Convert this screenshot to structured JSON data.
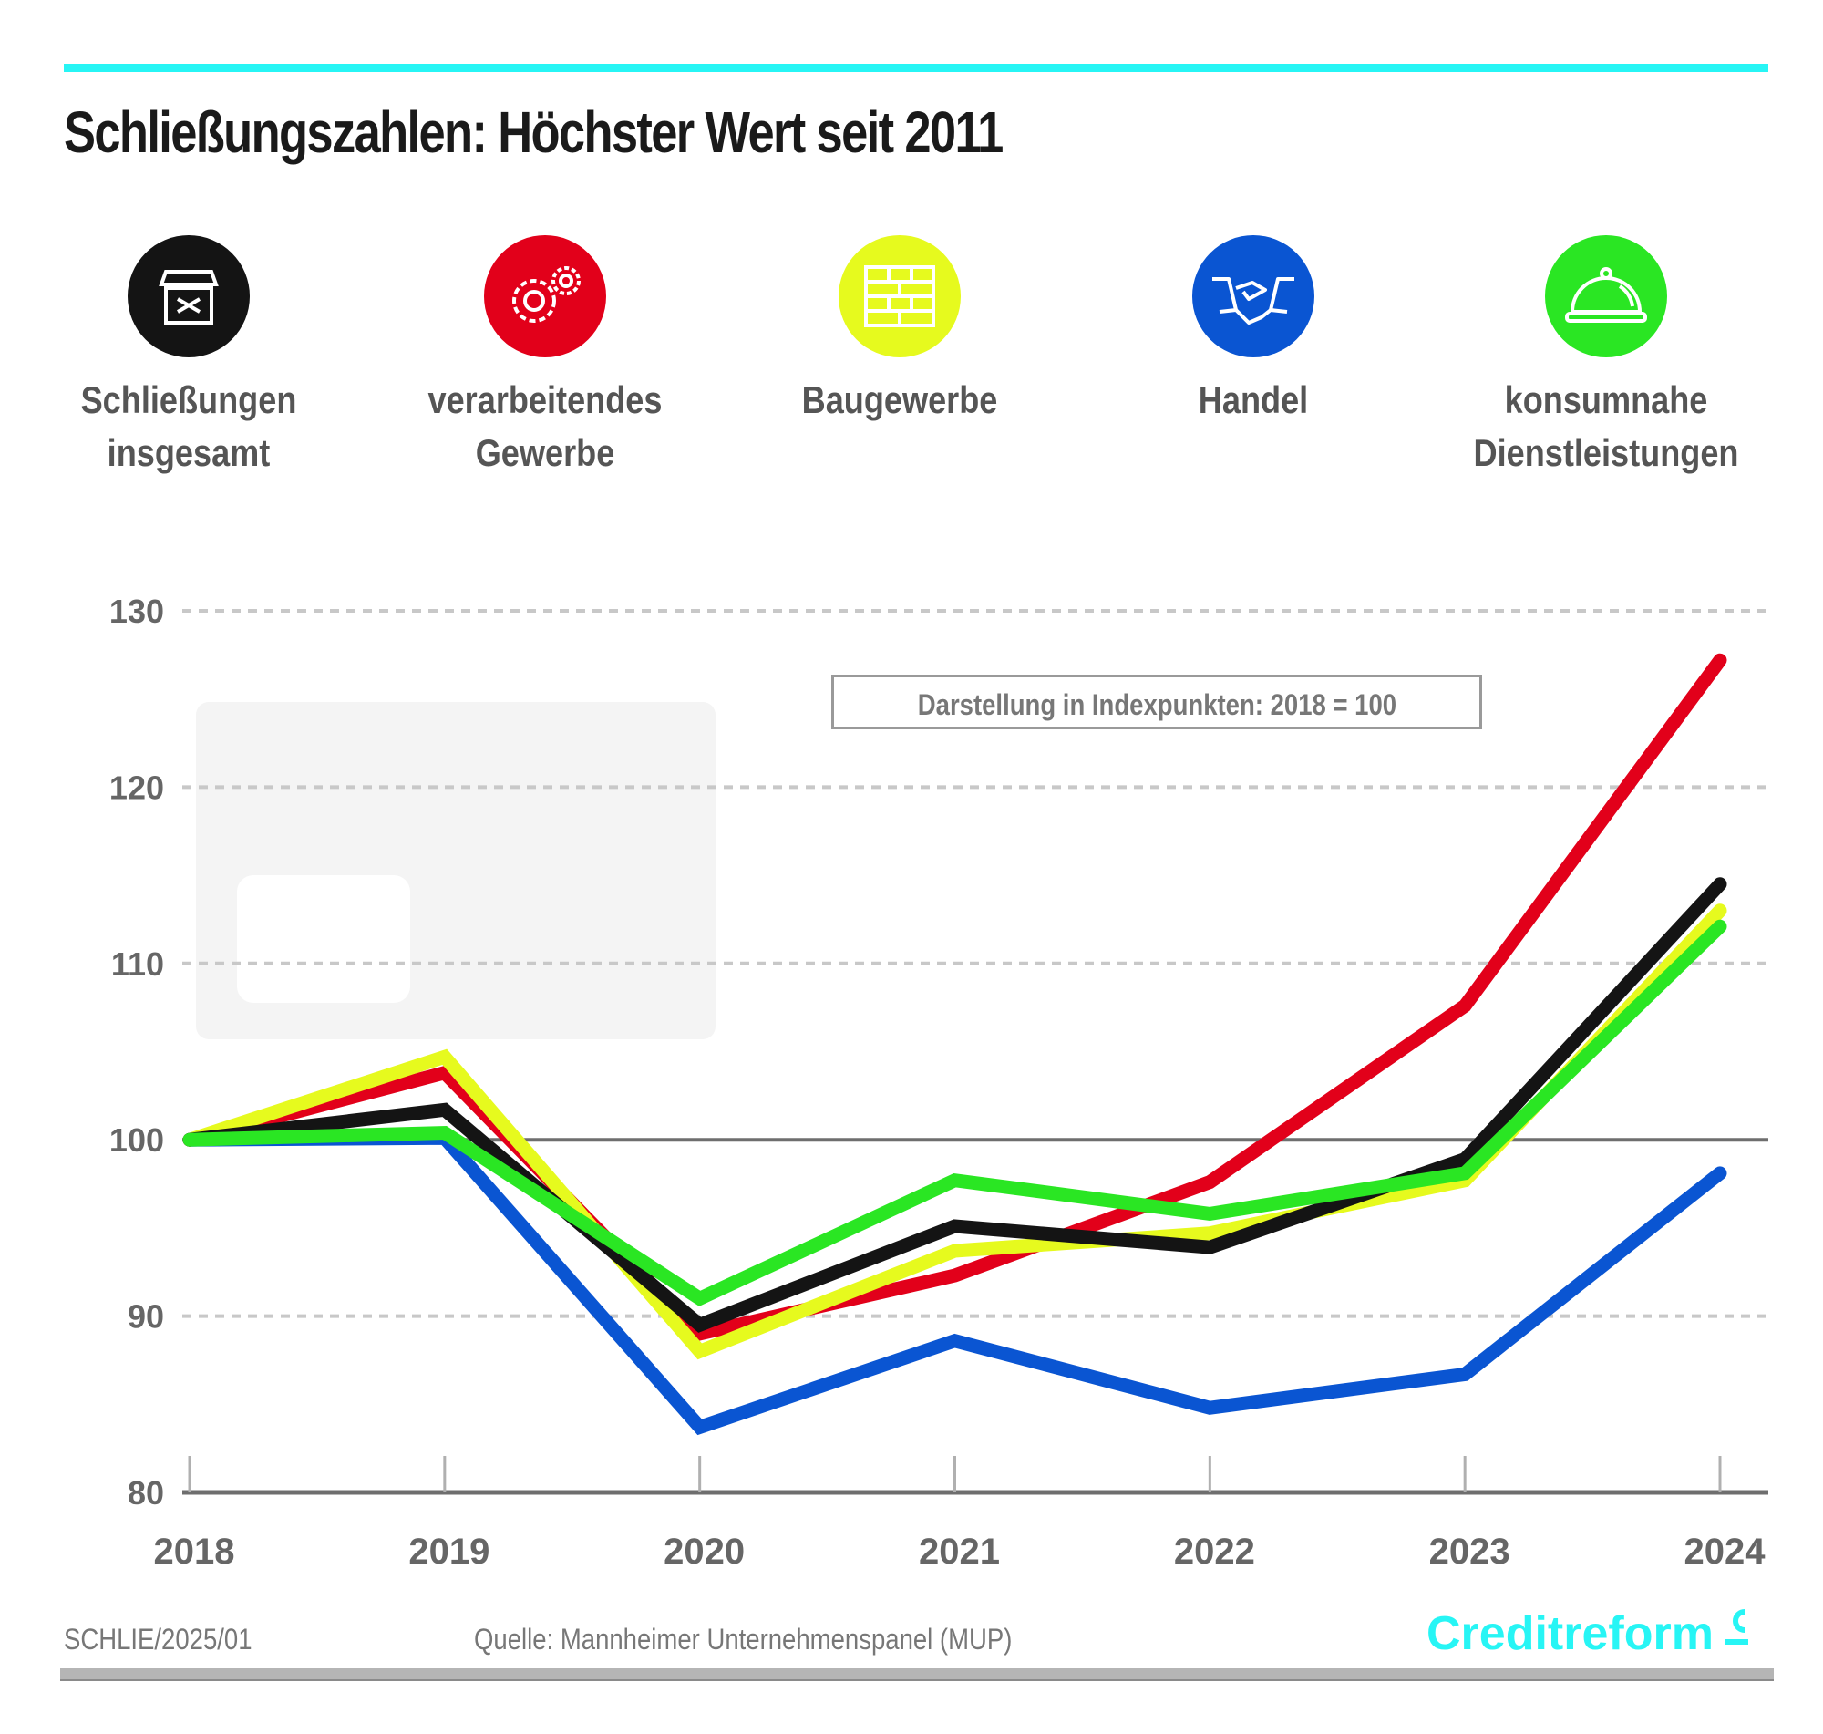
{
  "header": {
    "title": "Schließungszahlen: Höchster Wert seit 2011",
    "accent_color": "#27f5f5"
  },
  "legend": [
    {
      "label_line1": "Schließungen",
      "label_line2": "insgesamt",
      "color": "#141414",
      "icon": "shop-closed-icon"
    },
    {
      "label_line1": "verarbeitendes",
      "label_line2": "Gewerbe",
      "color": "#e2001a",
      "icon": "gears-icon"
    },
    {
      "label_line1": "Baugewerbe",
      "label_line2": "",
      "color": "#e6fa1e",
      "icon": "brick-wall-icon"
    },
    {
      "label_line1": "Handel",
      "label_line2": "",
      "color": "#0a55d2",
      "icon": "handshake-icon"
    },
    {
      "label_line1": "konsumnahe",
      "label_line2": "Dienstleistungen",
      "color": "#2ae623",
      "icon": "food-cloche-icon"
    }
  ],
  "note": "Darstellung in Indexpunkten: 2018 = 100",
  "footer": {
    "code": "SCHLIE/2025/01",
    "source": "Quelle: Mannheimer Unternehmenspanel (MUP)",
    "brand": "Creditreform"
  },
  "chart_data": {
    "type": "line",
    "title": "Schließungszahlen: Höchster Wert seit 2011",
    "subtitle": "Darstellung in Indexpunkten: 2018 = 100",
    "xlabel": "",
    "ylabel": "",
    "x": [
      "2018",
      "2019",
      "2020",
      "2021",
      "2022",
      "2023",
      "2024"
    ],
    "ylim": [
      80,
      130
    ],
    "yticks": [
      80,
      90,
      100,
      110,
      120,
      130
    ],
    "grid": true,
    "legend_position": "top",
    "series": [
      {
        "name": "Schließungen insgesamt",
        "color": "#141414",
        "values": [
          100,
          101.7,
          89.5,
          95.1,
          93.9,
          98.9,
          114.5
        ]
      },
      {
        "name": "verarbeitendes Gewerbe",
        "color": "#e2001a",
        "values": [
          100,
          103.8,
          89.0,
          92.3,
          97.6,
          107.6,
          127.2
        ]
      },
      {
        "name": "Baugewerbe",
        "color": "#e6fa1e",
        "values": [
          100,
          104.7,
          88.0,
          93.7,
          94.7,
          97.7,
          113.0
        ]
      },
      {
        "name": "Handel",
        "color": "#0a55d2",
        "values": [
          100,
          100.1,
          83.7,
          88.6,
          84.8,
          86.7,
          98.1
        ]
      },
      {
        "name": "konsumnahe Dienstleistungen",
        "color": "#2ae623",
        "values": [
          100,
          100.4,
          91.0,
          97.7,
          95.8,
          98.1,
          112.1
        ]
      }
    ]
  }
}
